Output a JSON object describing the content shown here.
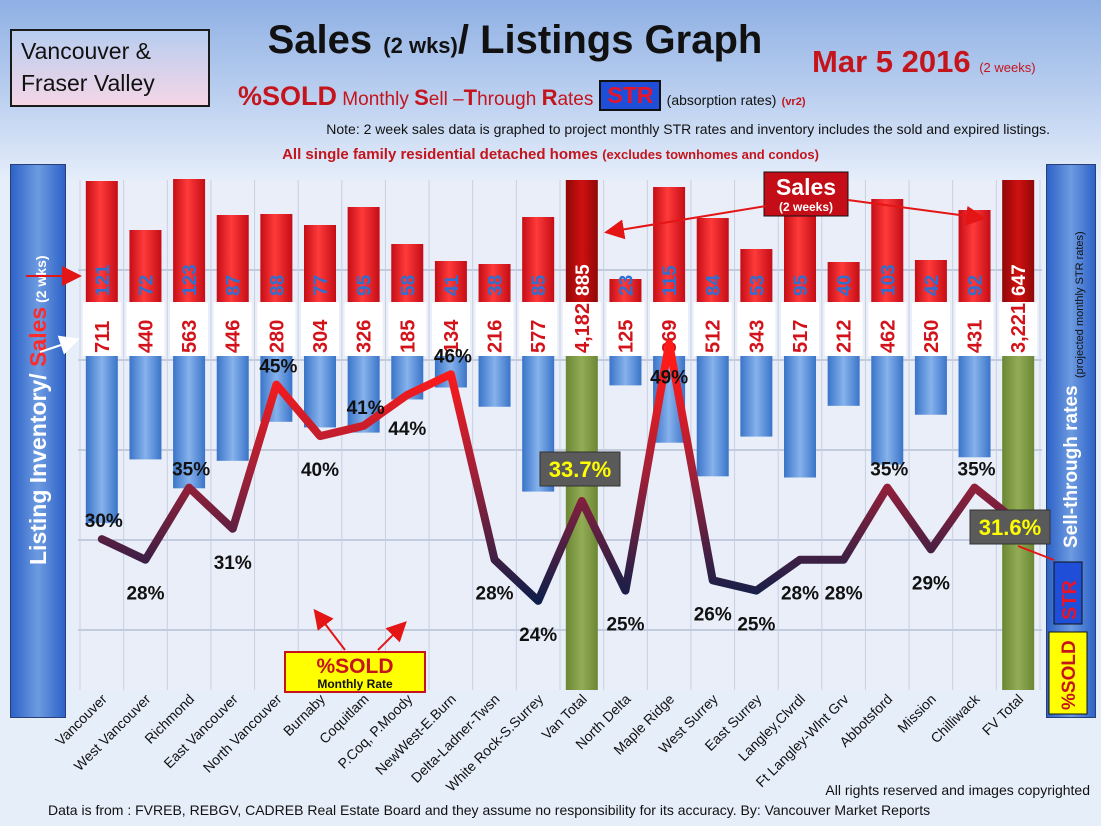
{
  "header": {
    "region_line1": "Vancouver &",
    "region_line2": "Fraser Valley",
    "title_main": "Sales ",
    "title_small": "(2 wks)",
    "title_rest": "/ Listings Graph",
    "date": "Mar 5 2016",
    "date_note": "(2 weeks)",
    "subtitle_sold": "%SOLD",
    "subtitle_monthly": " Monthly ",
    "subtitle_s": "S",
    "subtitle_ell": "ell –",
    "subtitle_t": "T",
    "subtitle_hrough": "hrough ",
    "subtitle_r": "R",
    "subtitle_ates": "ates",
    "str_badge": "STR",
    "absorption": "(absorption rates)",
    "version": "(vr2)",
    "note": "Note: 2 week sales data is graphed to project monthly STR rates and inventory includes the sold and expired listings.",
    "homes_note": "All single family residential detached homes",
    "homes_note_small": "(excludes townhomes and condos)"
  },
  "side_labels": {
    "left_listing": "Listing Inventory",
    "left_slash": "/ ",
    "left_sales": "Sales",
    "left_period": " (2  wks)",
    "right_str": "Sell-through rates",
    "right_proj": "(projected monthly STR rates)",
    "right_badge": "STR",
    "right_sold": "%SOLD"
  },
  "annotations": {
    "sales_label": "Sales",
    "sales_sub": "(2 weeks)",
    "sold_label": "%SOLD",
    "sold_sub": "Monthly Rate",
    "van_total_rate": "33.7%",
    "fv_total_rate": "31.6%"
  },
  "footer": {
    "copyright": "All rights reserved and  images copyrighted",
    "source": "Data is from : FVREB, REBGV, CADREB Real Estate Board and they assume no responsibility  for its accuracy. By: Vancouver Market Reports"
  },
  "colors": {
    "sales_bar": "#e5141f",
    "total_sales_bar": "#b30c0c",
    "inventory_bar": "#4f8ad8",
    "total_bar": "#7a9640",
    "sales_text": "#2f6fd0",
    "inventory_text": "#d3121a",
    "line_high": "#e31515",
    "line_low": "#1c2a52"
  },
  "chart_data": {
    "type": "bar",
    "categories": [
      "Vancouver",
      "West Vancouver",
      "Richmond",
      "East Vancouver",
      "North Vancouver",
      "Burnaby",
      "Coquitlam",
      "P.Coq, P.Moody",
      "NewWest-E.Burn",
      "Delta-Ladner-Twsn",
      "White Rock-S.Surrey",
      "Van Total",
      "North Delta",
      "Maple Ridge",
      "West Surrey",
      "East Surrey",
      "Langley,Clvrdl",
      "Ft Langley-Wlnt Grv",
      "Abbotsford",
      "Mission",
      "Chilliwack",
      "FV Total"
    ],
    "series": [
      {
        "name": "Sales",
        "values": [
          121,
          72,
          123,
          87,
          88,
          77,
          95,
          58,
          41,
          38,
          85,
          885,
          23,
          115,
          84,
          53,
          95,
          40,
          103,
          42,
          92,
          647
        ]
      },
      {
        "name": "Listing Inventory",
        "values": [
          711,
          440,
          563,
          446,
          280,
          304,
          326,
          185,
          134,
          216,
          577,
          4182,
          125,
          369,
          512,
          343,
          517,
          212,
          462,
          250,
          431,
          3221
        ]
      },
      {
        "name": "%SOLD",
        "values": [
          30,
          28,
          35,
          31,
          45,
          40,
          41,
          44,
          46,
          28,
          24,
          33.7,
          25,
          49,
          26,
          25,
          28,
          28,
          35,
          29,
          35,
          31.6
        ]
      }
    ],
    "value_labels_sold": [
      "30%",
      "28%",
      "35%",
      "31%",
      "45%",
      "40%",
      "41%",
      "44%",
      "46%",
      "28%",
      "24%",
      "",
      "25%",
      "49%",
      "26%",
      "25%",
      "28%",
      "28%",
      "35%",
      "29%",
      "35%",
      ""
    ]
  }
}
